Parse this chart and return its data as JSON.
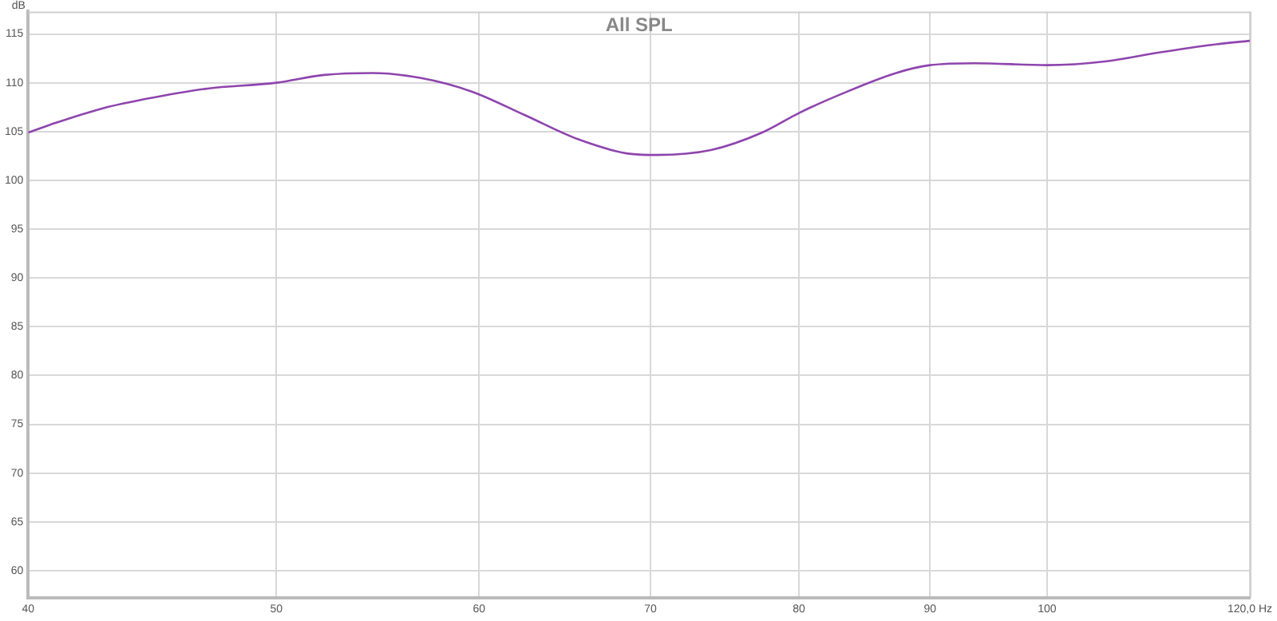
{
  "chart_data": {
    "type": "line",
    "title": "All SPL",
    "ylabel": "dB",
    "log": "x",
    "grid": true,
    "legend": false,
    "marker": "none",
    "line_style": "solid",
    "xlim": [
      40,
      120
    ],
    "xticks": [
      40,
      50,
      60,
      70,
      80,
      90,
      100,
      {
        "value": 120,
        "label": "120,0 Hz"
      }
    ],
    "ylim": [
      57.2,
      117.3
    ],
    "yticks": [
      60,
      65,
      70,
      75,
      80,
      85,
      90,
      95,
      100,
      105,
      110,
      115
    ],
    "series": [
      {
        "color": "#8e44ad",
        "x": [
          40,
          40.8,
          42.8,
          44.8,
          47,
          50,
          52.2,
          54.5,
          56.9,
          59.6,
          62.5,
          65.6,
          68.8,
          70.4,
          73.9,
          77.4,
          80,
          83.2,
          87.3,
          90,
          93.7,
          100,
          105.5,
          110.6,
          116.1,
          120
        ],
        "values": [
          104.9,
          105.7,
          107.4,
          108.5,
          109.4,
          110,
          110.8,
          111,
          110.5,
          109.1,
          106.7,
          104.2,
          102.7,
          102.6,
          103.1,
          104.9,
          106.9,
          108.9,
          111,
          111.8,
          112,
          111.8,
          112.2,
          113.1,
          113.9,
          114.3
        ]
      }
    ]
  }
}
